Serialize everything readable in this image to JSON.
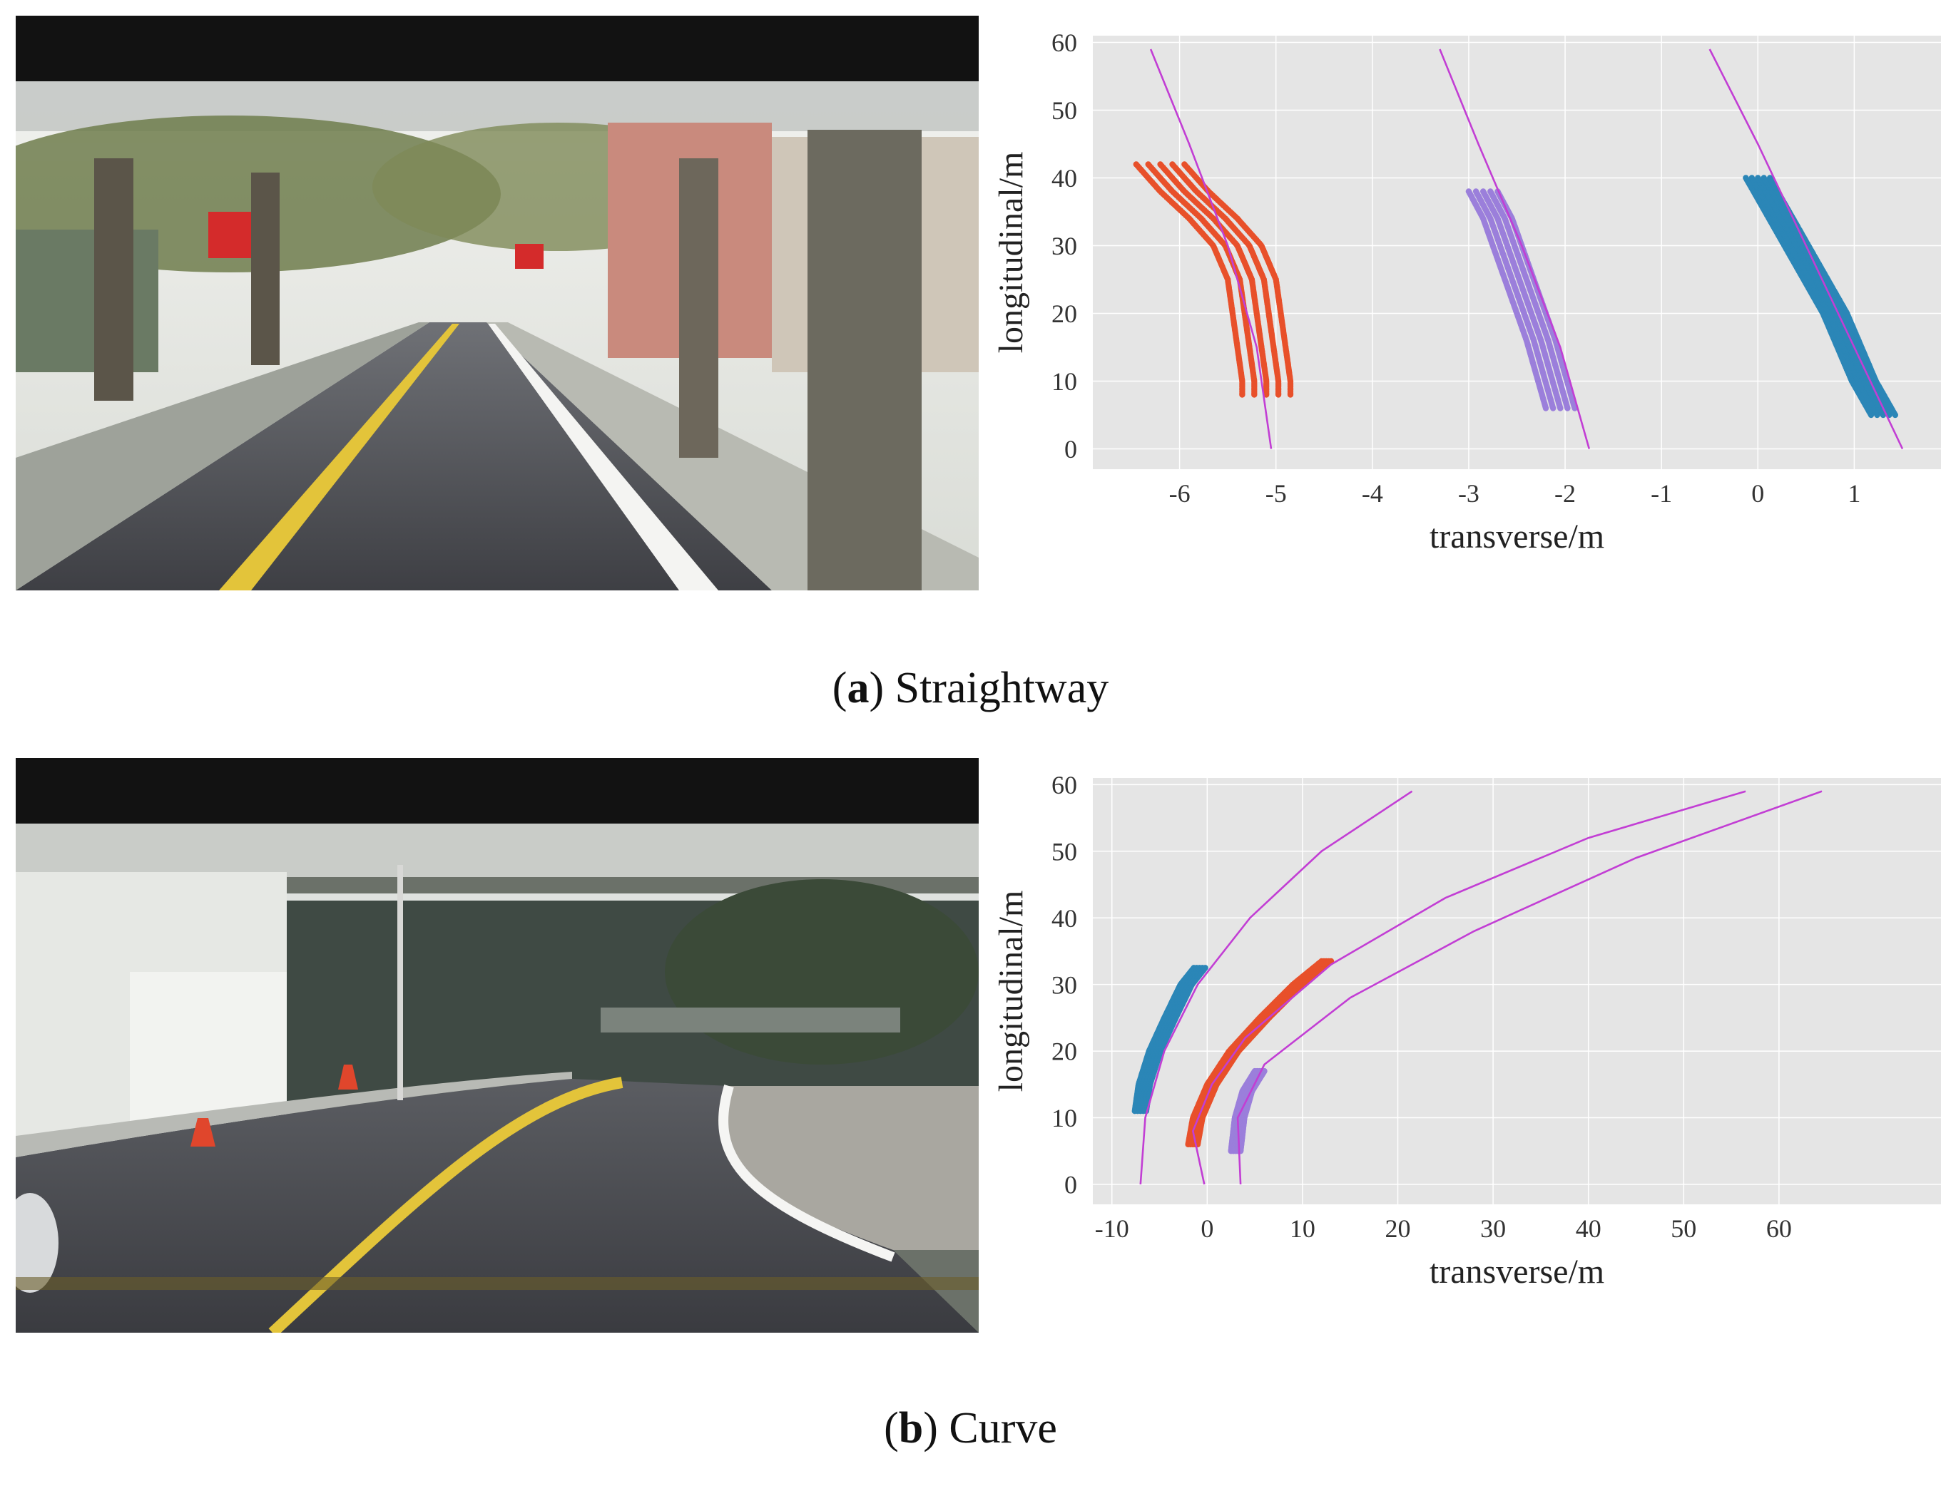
{
  "figure": {
    "caption_a": {
      "letter": "a",
      "text": "Straightway"
    },
    "caption_b": {
      "letter": "b",
      "text": "Curve"
    }
  },
  "photos": [
    {
      "subject": "straight tree-lined campus road with yellow center line, seen through windshield"
    },
    {
      "subject": "curving road with yellow center line and traffic cones, seen through windshield"
    }
  ],
  "colors": {
    "plot_bg": "#e5e5e5",
    "grid": "#ffffff",
    "fit_line": "#c23ed4",
    "red": "#e8502a",
    "purple": "#9b7fdb",
    "blue": "#2b86b7"
  },
  "chart_data": [
    {
      "type": "scatter",
      "title": "",
      "xlabel": "transverse/m",
      "ylabel": "longitudinal/m",
      "xlim": [
        -6.9,
        1.9
      ],
      "ylim": [
        -3,
        61
      ],
      "xticks": [
        -6,
        -5,
        -4,
        -3,
        -2,
        -1,
        0,
        1
      ],
      "yticks": [
        0,
        10,
        20,
        30,
        40,
        50,
        60
      ],
      "grid": true,
      "series": [
        {
          "color": "red",
          "width": 0.5,
          "points": [
            [
              -6.2,
              42
            ],
            [
              -5.95,
              38
            ],
            [
              -5.65,
              34
            ],
            [
              -5.4,
              30
            ],
            [
              -5.25,
              25
            ],
            [
              -5.2,
              20
            ],
            [
              -5.15,
              15
            ],
            [
              -5.1,
              10
            ],
            [
              -5.1,
              8
            ]
          ]
        },
        {
          "color": "purple",
          "width": 0.3,
          "points": [
            [
              -2.85,
              38
            ],
            [
              -2.7,
              34
            ],
            [
              -2.55,
              28
            ],
            [
              -2.4,
              22
            ],
            [
              -2.25,
              16
            ],
            [
              -2.15,
              11
            ],
            [
              -2.05,
              6
            ]
          ]
        },
        {
          "color": "blue",
          "width": 0.25,
          "points": [
            [
              0.0,
              40
            ],
            [
              0.2,
              35
            ],
            [
              0.4,
              30
            ],
            [
              0.6,
              25
            ],
            [
              0.8,
              20
            ],
            [
              0.95,
              15
            ],
            [
              1.1,
              10
            ],
            [
              1.3,
              5
            ]
          ]
        }
      ],
      "fit_lines": [
        {
          "points": [
            [
              -6.3,
              59
            ],
            [
              -5.9,
              45
            ],
            [
              -5.5,
              30
            ],
            [
              -5.2,
              15
            ],
            [
              -5.05,
              0
            ]
          ]
        },
        {
          "points": [
            [
              -3.3,
              59
            ],
            [
              -2.9,
              45
            ],
            [
              -2.45,
              30
            ],
            [
              -2.05,
              15
            ],
            [
              -1.75,
              0
            ]
          ]
        },
        {
          "points": [
            [
              -0.5,
              59
            ],
            [
              0.0,
              45
            ],
            [
              0.5,
              30
            ],
            [
              1.0,
              15
            ],
            [
              1.5,
              0
            ]
          ]
        }
      ]
    },
    {
      "type": "scatter",
      "title": "",
      "xlabel": "transverse/m",
      "ylabel": "longitudinal/m",
      "xlim": [
        -12,
        77
      ],
      "ylim": [
        -3,
        61
      ],
      "xticks": [
        -10,
        0,
        10,
        20,
        30,
        40,
        50,
        60
      ],
      "yticks": [
        0,
        10,
        20,
        30,
        40,
        50,
        60
      ],
      "grid": true,
      "series": [
        {
          "color": "blue",
          "width": 1.2,
          "points": [
            [
              -7,
              11
            ],
            [
              -6.6,
              15
            ],
            [
              -5.5,
              20
            ],
            [
              -3.9,
              25
            ],
            [
              -2.2,
              30
            ],
            [
              -0.8,
              32.5
            ]
          ]
        },
        {
          "color": "red",
          "width": 1.0,
          "points": [
            [
              -1.5,
              6
            ],
            [
              -1,
              10
            ],
            [
              0.5,
              15
            ],
            [
              2.8,
              20
            ],
            [
              6,
              25
            ],
            [
              9.5,
              30
            ],
            [
              12.5,
              33.5
            ]
          ]
        },
        {
          "color": "purple",
          "width": 1.0,
          "points": [
            [
              3,
              5
            ],
            [
              3.4,
              10
            ],
            [
              4.2,
              14
            ],
            [
              5.5,
              17
            ]
          ]
        }
      ],
      "fit_lines": [
        {
          "points": [
            [
              -7,
              0
            ],
            [
              -6.5,
              10
            ],
            [
              -4.5,
              20
            ],
            [
              -1,
              30
            ],
            [
              4.5,
              40
            ],
            [
              12,
              50
            ],
            [
              21.5,
              59
            ]
          ]
        },
        {
          "points": [
            [
              -0.3,
              0
            ],
            [
              -1.5,
              8
            ],
            [
              0.5,
              15
            ],
            [
              4,
              22
            ],
            [
              13,
              33
            ],
            [
              25,
              43
            ],
            [
              40,
              52
            ],
            [
              56.5,
              59
            ]
          ]
        },
        {
          "points": [
            [
              3.5,
              0
            ],
            [
              3.2,
              10
            ],
            [
              6,
              18
            ],
            [
              15,
              28
            ],
            [
              28,
              38
            ],
            [
              45,
              49
            ],
            [
              64.5,
              59
            ]
          ]
        }
      ]
    }
  ]
}
